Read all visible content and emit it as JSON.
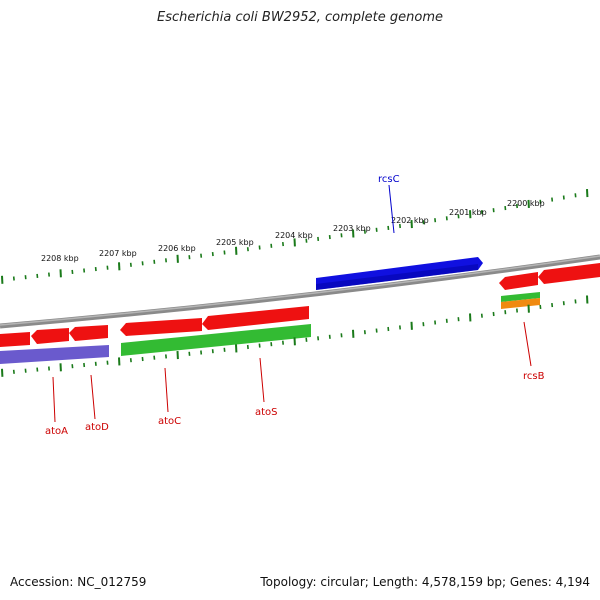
{
  "title": "Escherichia coli BW2952, complete genome",
  "accession": "Accession: NC_012759",
  "summary": "Topology: circular; Length: 4,578,159 bp; Genes: 4,194",
  "colors": {
    "backbone": "#888888",
    "scale": "#1a7a1a",
    "forward_cds": "#ee1111",
    "reverse_blue": "#1010e0",
    "purple": "#6a5acd",
    "green": "#33bb33",
    "orange": "#f08a10"
  },
  "scale": {
    "tick_labels": [
      "2208 kbp",
      "2207 kbp",
      "2206 kbp",
      "2205 kbp",
      "2204 kbp",
      "2203 kbp",
      "2202 kbp",
      "2201 kbp",
      "2200 kbp"
    ]
  },
  "genes": [
    {
      "name": "atoA",
      "color": "#cc0000"
    },
    {
      "name": "atoD",
      "color": "#cc0000"
    },
    {
      "name": "atoC",
      "color": "#cc0000"
    },
    {
      "name": "atoS",
      "color": "#cc0000"
    },
    {
      "name": "rcsB",
      "color": "#cc0000"
    },
    {
      "name": "rcsC",
      "color": "#0000cc"
    }
  ]
}
